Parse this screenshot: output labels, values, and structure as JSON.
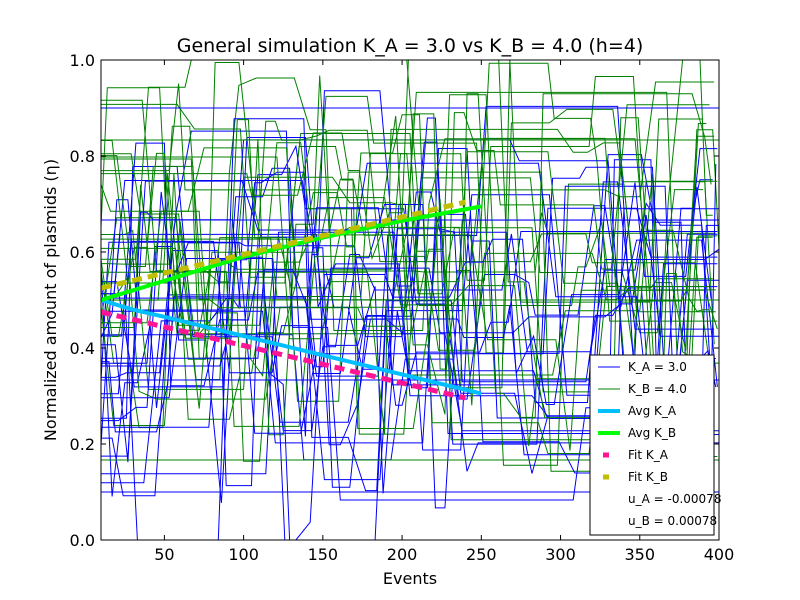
{
  "chart_data": {
    "type": "line",
    "title": "General simulation K_A = 3.0 vs K_B = 4.0 (h=4)",
    "xlabel": "Events",
    "ylabel": "Normalized amount of plasmids (η)",
    "xlim": [
      10,
      400
    ],
    "ylim": [
      0.0,
      1.0
    ],
    "xticks": [
      50,
      100,
      150,
      200,
      250,
      300,
      350,
      400
    ],
    "yticks": [
      0.0,
      0.2,
      0.4,
      0.6,
      0.8,
      1.0
    ],
    "xtick_labels": [
      "50",
      "100",
      "150",
      "200",
      "250",
      "300",
      "350",
      "400"
    ],
    "ytick_labels": [
      "0.0",
      "0.2",
      "0.4",
      "0.6",
      "0.8",
      "1.0"
    ],
    "grid": false,
    "legend_position": "lower-right",
    "colors": {
      "K_A": "#0000ff",
      "K_B": "#008000",
      "avg_K_A": "#00bfff",
      "avg_K_B": "#00ff00",
      "fit_K_A": "#ff1493",
      "fit_K_B": "#bfbf00"
    },
    "simulation_series": [
      {
        "name": "K_A = 3.0",
        "description": "many stochastic simulation trajectories between 0.0 and 1.0",
        "x_range": [
          10,
          400
        ]
      },
      {
        "name": "K_B = 4.0",
        "description": "many stochastic simulation trajectories between 0.0 and 1.0",
        "x_range": [
          10,
          400
        ]
      }
    ],
    "series": [
      {
        "name": "Avg K_A",
        "x": [
          10,
          20,
          30,
          50,
          75,
          100,
          125,
          150,
          175,
          200,
          225,
          250
        ],
        "y": [
          0.5,
          0.49,
          0.48,
          0.465,
          0.445,
          0.425,
          0.405,
          0.385,
          0.365,
          0.345,
          0.325,
          0.305
        ]
      },
      {
        "name": "Avg K_B",
        "x": [
          10,
          20,
          30,
          50,
          75,
          100,
          125,
          150,
          175,
          200,
          225,
          250
        ],
        "y": [
          0.5,
          0.51,
          0.52,
          0.54,
          0.565,
          0.59,
          0.61,
          0.63,
          0.648,
          0.665,
          0.68,
          0.695
        ]
      },
      {
        "name": "Fit K_A",
        "x": [
          10,
          50,
          100,
          150,
          200,
          240
        ],
        "y": [
          0.475,
          0.444,
          0.405,
          0.366,
          0.327,
          0.296
        ]
      },
      {
        "name": "Fit K_B",
        "x": [
          10,
          50,
          100,
          150,
          200,
          240
        ],
        "y": [
          0.525,
          0.556,
          0.595,
          0.634,
          0.673,
          0.704
        ]
      }
    ],
    "legend": [
      {
        "label": "K_A = 3.0",
        "style": "thin",
        "color": "#0000ff"
      },
      {
        "label": "K_B = 4.0",
        "style": "thin",
        "color": "#008000"
      },
      {
        "label": "Avg K_A",
        "style": "thick",
        "color": "#00bfff"
      },
      {
        "label": "Avg K_B",
        "style": "thick",
        "color": "#00ff00"
      },
      {
        "label": "Fit K_A",
        "style": "dash",
        "color": "#ff1493"
      },
      {
        "label": "Fit K_B",
        "style": "dash",
        "color": "#bfbf00"
      },
      {
        "label": "u_A = -0.00078",
        "style": "none",
        "color": ""
      },
      {
        "label": "u_B = 0.00078",
        "style": "none",
        "color": ""
      }
    ]
  }
}
